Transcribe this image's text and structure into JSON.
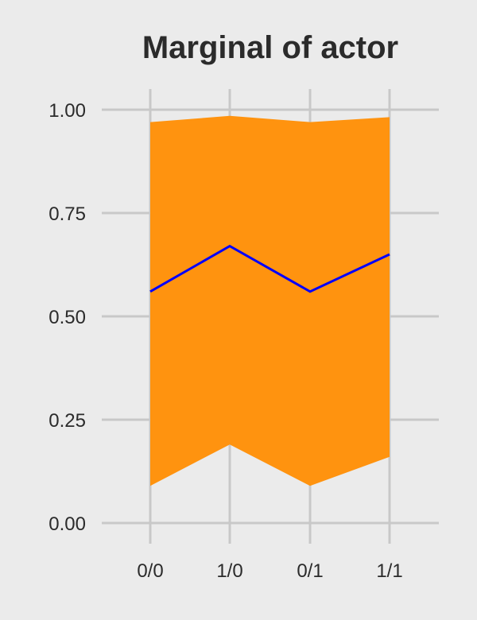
{
  "chart_data": {
    "type": "area",
    "title": "Marginal of actor",
    "xlabel": "",
    "ylabel": "",
    "categories": [
      "0/0",
      "1/0",
      "0/1",
      "1/1"
    ],
    "ylim": [
      0,
      1
    ],
    "yticks": [
      "0.00",
      "0.25",
      "0.50",
      "0.75",
      "1.00"
    ],
    "ytick_values": [
      0,
      0.25,
      0.5,
      0.75,
      1.0
    ],
    "grid": true,
    "legend": "none",
    "series": [
      {
        "type": "band",
        "lower": [
          0.09,
          0.19,
          0.09,
          0.16
        ],
        "upper": [
          0.97,
          0.985,
          0.97,
          0.982
        ],
        "color": "#ff930f"
      },
      {
        "type": "line",
        "values": [
          0.56,
          0.67,
          0.56,
          0.65
        ],
        "color": "#0000ff"
      }
    ],
    "colors": {
      "background": "#ebebeb",
      "grid": "#c8c8c8",
      "band": "#ff930f",
      "line": "#0000ff",
      "text": "#2b2b2b"
    }
  }
}
